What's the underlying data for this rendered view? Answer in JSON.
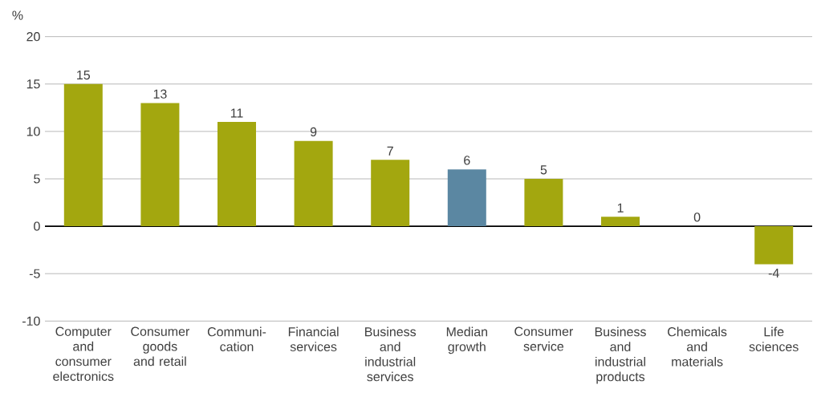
{
  "chart_data": {
    "type": "bar",
    "categories": [
      "Computer and consumer electronics",
      "Consumer goods and retail",
      "Communi-cation",
      "Financial services",
      "Business and industrial services",
      "Median growth",
      "Consumer service",
      "Business and industrial products",
      "Chemicals and materials",
      "Life sciences"
    ],
    "values": [
      15,
      13,
      11,
      9,
      7,
      6,
      5,
      1,
      0,
      -4
    ],
    "colors": [
      "#a3a70f",
      "#a3a70f",
      "#a3a70f",
      "#a3a70f",
      "#a3a70f",
      "#5b87a2",
      "#a3a70f",
      "#a3a70f",
      "#a3a70f",
      "#a3a70f"
    ],
    "ylabel": "%",
    "ylim": [
      -10,
      20
    ],
    "yticks": [
      -10,
      -5,
      0,
      5,
      10,
      15,
      20
    ],
    "grid": "y",
    "data_labels": true
  }
}
